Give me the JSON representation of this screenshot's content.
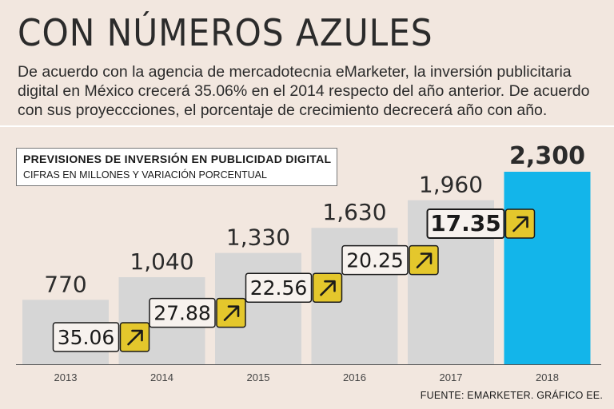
{
  "header": {
    "title": "CON NÚMEROS AZULES",
    "intro": "De acuerdo con la agencia de mercadotecnia eMarketer, la inversión publicitaria digital en México crecerá 35.06% en el 2014 respecto del año anterior. De acuerdo con sus proyeccciones, el porcentaje de crecimiento decrecerá año con año."
  },
  "legend": {
    "title": "PREVISIONES DE INVERSIÓN EN PUBLICIDAD DIGITAL",
    "subtitle": "CIFRAS EN MILLONES Y VARIACIÓN PORCENTUAL"
  },
  "footer": {
    "source": "FUENTE: EMARKETER. GRÁFICO EE."
  },
  "icons": {
    "growth_arrow": "arrow-up-right-icon"
  },
  "colors": {
    "background": "#f2e7df",
    "bar": "#d6d6d6",
    "highlight_bar": "#13b5ea",
    "badge": "#e4c72c"
  },
  "chart_data": {
    "type": "bar",
    "title": "PREVISIONES DE INVERSIÓN EN PUBLICIDAD DIGITAL",
    "subtitle": "CIFRAS EN MILLONES Y VARIACIÓN PORCENTUAL",
    "categories": [
      "2013",
      "2014",
      "2015",
      "2016",
      "2017",
      "2018"
    ],
    "values": [
      770,
      1040,
      1330,
      1630,
      1960,
      2300
    ],
    "value_labels": [
      "770",
      "1,040",
      "1,330",
      "1,630",
      "1,960",
      "2,300"
    ],
    "growth": [
      null,
      "35.06",
      "27.88",
      "22.56",
      "20.25",
      "17.35"
    ],
    "highlight_category": "2018",
    "highlight_growth": "17.35",
    "xlabel": "",
    "ylabel": "",
    "ylim": [
      0,
      2300
    ],
    "grid": false
  }
}
